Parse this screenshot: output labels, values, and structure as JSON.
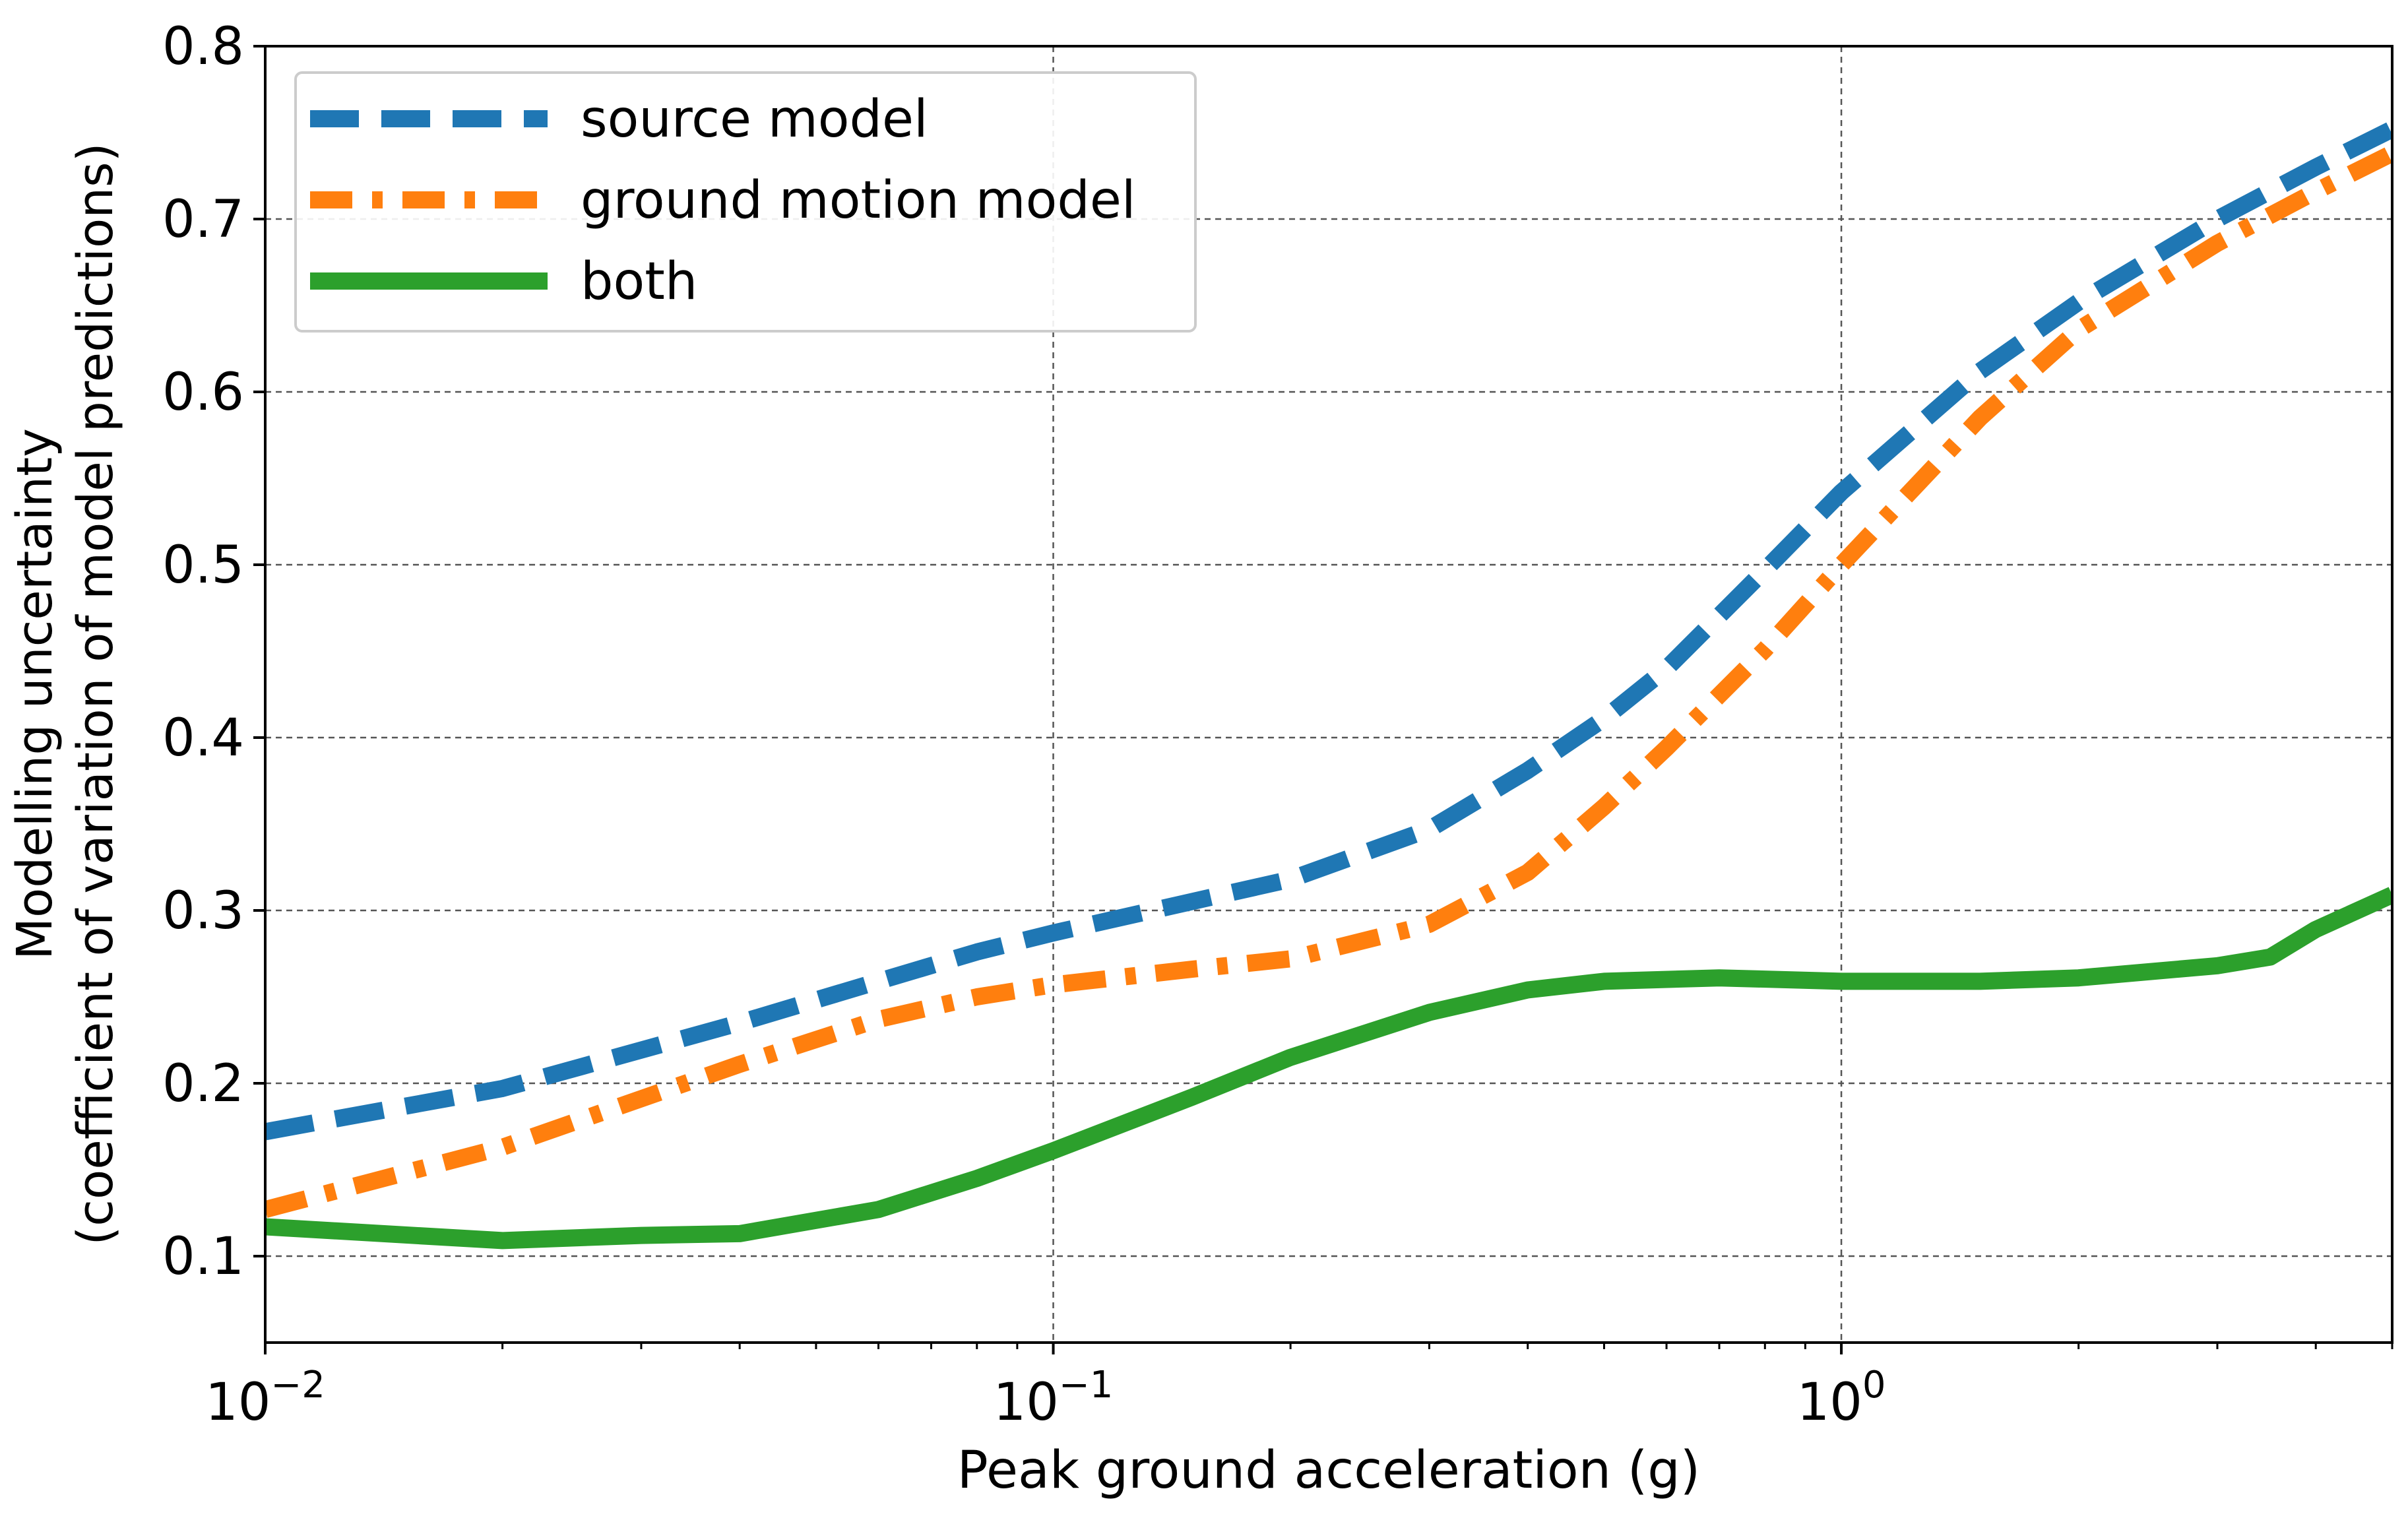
{
  "chart_data": {
    "type": "line",
    "xlabel": "Peak ground acceleration (g)",
    "ylabel_line1": "Modelling uncertainty",
    "ylabel_line2": "(coefficient of variation of model predictions)",
    "xscale": "log",
    "xlim": [
      0.01,
      5
    ],
    "ylim": [
      0.05,
      0.8
    ],
    "x_ticks": [
      {
        "value": 0.01,
        "base": "10",
        "exp": "−2"
      },
      {
        "value": 0.1,
        "base": "10",
        "exp": "−1"
      },
      {
        "value": 1,
        "base": "10",
        "exp": "0"
      }
    ],
    "y_ticks": [
      {
        "value": 0.1,
        "label": "0.1"
      },
      {
        "value": 0.2,
        "label": "0.2"
      },
      {
        "value": 0.3,
        "label": "0.3"
      },
      {
        "value": 0.4,
        "label": "0.4"
      },
      {
        "value": 0.5,
        "label": "0.5"
      },
      {
        "value": 0.6,
        "label": "0.6"
      },
      {
        "value": 0.7,
        "label": "0.7"
      },
      {
        "value": 0.8,
        "label": "0.8"
      }
    ],
    "grid": true,
    "legend_position": "top-left",
    "series": [
      {
        "name": "source model",
        "color": "#1f77b4",
        "style": "dashed",
        "x": [
          0.01,
          0.02,
          0.04,
          0.06,
          0.08,
          0.1,
          0.2,
          0.3,
          0.4,
          0.5,
          0.6,
          0.8,
          1.0,
          1.5,
          2.0,
          3.0,
          4.0,
          5.0
        ],
        "y": [
          0.172,
          0.197,
          0.235,
          0.259,
          0.276,
          0.287,
          0.318,
          0.347,
          0.381,
          0.411,
          0.44,
          0.497,
          0.542,
          0.612,
          0.652,
          0.7,
          0.73,
          0.752
        ]
      },
      {
        "name": "ground motion model",
        "color": "#ff7f0e",
        "style": "dashdot",
        "x": [
          0.01,
          0.02,
          0.04,
          0.06,
          0.08,
          0.1,
          0.15,
          0.2,
          0.3,
          0.4,
          0.5,
          0.6,
          0.8,
          1.0,
          1.5,
          2.0,
          3.0,
          4.0,
          5.0
        ],
        "y": [
          0.127,
          0.163,
          0.211,
          0.237,
          0.25,
          0.257,
          0.266,
          0.272,
          0.292,
          0.322,
          0.36,
          0.394,
          0.451,
          0.5,
          0.585,
          0.636,
          0.686,
          0.716,
          0.738
        ]
      },
      {
        "name": "both",
        "color": "#2ca02c",
        "style": "solid",
        "x": [
          0.01,
          0.02,
          0.03,
          0.04,
          0.06,
          0.08,
          0.1,
          0.15,
          0.2,
          0.3,
          0.4,
          0.5,
          0.7,
          1.0,
          1.5,
          2.0,
          3.0,
          3.5,
          4.0,
          5.0
        ],
        "y": [
          0.117,
          0.109,
          0.112,
          0.113,
          0.127,
          0.145,
          0.161,
          0.192,
          0.215,
          0.241,
          0.254,
          0.259,
          0.261,
          0.259,
          0.259,
          0.261,
          0.268,
          0.273,
          0.289,
          0.309
        ]
      }
    ]
  }
}
